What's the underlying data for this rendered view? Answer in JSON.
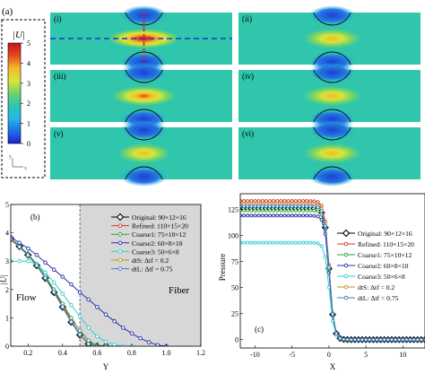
{
  "panel_a": {
    "label": "(a)",
    "colorbar": {
      "title": "|U|",
      "tick_labels": [
        "0",
        "1",
        "2",
        "3",
        "4",
        "5"
      ],
      "min": 0,
      "max": 5,
      "colors": [
        "#1f1fcf",
        "#1f6fe6",
        "#27b7e8",
        "#2ec5b0",
        "#6fd36b",
        "#d8e53a",
        "#f2b92c",
        "#e8441d",
        "#c4161c"
      ]
    },
    "axes_glyph": {
      "x": "x",
      "y": "y"
    },
    "subplots": [
      {
        "label": "(i)",
        "peak": 5.0,
        "dashed_guides": true
      },
      {
        "label": "(ii)",
        "peak": 4.3,
        "dashed_guides": false
      },
      {
        "label": "(iii)",
        "peak": 4.6,
        "dashed_guides": false
      },
      {
        "label": "(iv)",
        "peak": 4.3,
        "dashed_guides": false
      },
      {
        "label": "(v)",
        "peak": 4.1,
        "dashed_guides": false
      },
      {
        "label": "(vi)",
        "peak": 4.3,
        "dashed_guides": false
      }
    ],
    "guide_colors": {
      "horizontal": "#2233cc",
      "vertical": "#dd2222"
    }
  },
  "chart_data": [
    {
      "type": "line",
      "panel": "(b)",
      "xlabel": "Y",
      "ylabel": "|U|",
      "xlim": [
        0.1,
        1.2
      ],
      "ylim": [
        0,
        5
      ],
      "xticks": [
        "0.2",
        "0.4",
        "0.6",
        "0.8",
        "1.0",
        "1.2"
      ],
      "yticks": [
        "0",
        "1",
        "2",
        "3",
        "4",
        "5"
      ],
      "region_labels": [
        "Flow",
        "Fiber"
      ],
      "fiber_region_start": 0.5,
      "legend_position": "top-right",
      "series": [
        {
          "name": "Original: 90×12×16",
          "color": "#000000",
          "marker": "diamond",
          "x": [
            0.1,
            0.15,
            0.2,
            0.25,
            0.3,
            0.35,
            0.4,
            0.45,
            0.5,
            0.55,
            0.6,
            0.65
          ],
          "y": [
            3.8,
            3.52,
            3.22,
            2.85,
            2.4,
            1.9,
            1.38,
            0.85,
            0.4,
            0.08,
            0.0,
            0.0
          ]
        },
        {
          "name": "Refined: 110×15×20",
          "color": "#d9302a",
          "marker": "circle",
          "x": [
            0.1,
            0.15,
            0.2,
            0.25,
            0.3,
            0.35,
            0.4,
            0.45,
            0.5,
            0.55,
            0.6,
            0.65
          ],
          "y": [
            3.75,
            3.5,
            3.2,
            2.85,
            2.42,
            1.95,
            1.45,
            0.92,
            0.42,
            0.1,
            0.0,
            0.0
          ]
        },
        {
          "name": "Coarse1: 75×10×12",
          "color": "#2e9f3a",
          "marker": "circle",
          "x": [
            0.1,
            0.15,
            0.2,
            0.25,
            0.3,
            0.35,
            0.4,
            0.45,
            0.5,
            0.55,
            0.6,
            0.65,
            0.7
          ],
          "y": [
            3.8,
            3.55,
            3.25,
            2.9,
            2.48,
            2.0,
            1.5,
            1.0,
            0.55,
            0.2,
            0.03,
            0.0,
            0.0
          ]
        },
        {
          "name": "Coarse2: 60×8×10",
          "color": "#2233aa",
          "marker": "circle",
          "x": [
            0.1,
            0.15,
            0.2,
            0.25,
            0.3,
            0.35,
            0.4,
            0.45,
            0.5,
            0.55,
            0.6,
            0.65,
            0.7,
            0.75,
            0.8,
            0.85,
            0.9,
            0.95,
            1.0
          ],
          "y": [
            3.85,
            3.65,
            3.45,
            3.22,
            2.95,
            2.7,
            2.45,
            2.18,
            1.9,
            1.65,
            1.38,
            1.12,
            0.88,
            0.65,
            0.45,
            0.28,
            0.14,
            0.04,
            0.0
          ]
        },
        {
          "name": "Coarse3: 50×6×8",
          "color": "#2fcfd6",
          "marker": "circle",
          "x": [
            0.1,
            0.15,
            0.2,
            0.25,
            0.3,
            0.35,
            0.4,
            0.45,
            0.5,
            0.55,
            0.6,
            0.65,
            0.7,
            0.75,
            0.8
          ],
          "y": [
            3.0,
            3.0,
            3.0,
            2.9,
            2.6,
            2.25,
            1.85,
            1.45,
            1.05,
            0.65,
            0.35,
            0.15,
            0.05,
            0.0,
            0.0
          ]
        },
        {
          "name": "dtS: Δtf = 0.2",
          "color": "#b8961e",
          "marker": "circle",
          "x": [
            0.1,
            0.15,
            0.2,
            0.25,
            0.3,
            0.35,
            0.4,
            0.45,
            0.5,
            0.55,
            0.6,
            0.65
          ],
          "y": [
            3.78,
            3.5,
            3.2,
            2.84,
            2.4,
            1.91,
            1.4,
            0.87,
            0.4,
            0.08,
            0.0,
            0.0
          ]
        },
        {
          "name": "dtL: Δtf = 0.75",
          "color": "#3a7fc9",
          "marker": "circle",
          "x": [
            0.1,
            0.15,
            0.2,
            0.25,
            0.3,
            0.35,
            0.4,
            0.45,
            0.5,
            0.55,
            0.6,
            0.65
          ],
          "y": [
            3.79,
            3.51,
            3.21,
            2.85,
            2.41,
            1.91,
            1.39,
            0.86,
            0.41,
            0.08,
            0.0,
            0.0
          ]
        }
      ]
    },
    {
      "type": "line",
      "panel": "(c)",
      "xlabel": "X",
      "ylabel": "Pressure",
      "xlim": [
        -12,
        13
      ],
      "ylim": [
        -8,
        140
      ],
      "xticks": [
        "-10",
        "-5",
        "0",
        "5",
        "10"
      ],
      "yticks": [
        "0",
        "25",
        "50",
        "75",
        "100",
        "125"
      ],
      "legend_position": "top-right",
      "series": [
        {
          "name": "Original: 90×12×16",
          "color": "#000000",
          "marker": "diamond",
          "level": 126
        },
        {
          "name": "Refined: 110×15×20",
          "color": "#d9302a",
          "marker": "circle",
          "level": 133
        },
        {
          "name": "Coarse1: 75×10×12",
          "color": "#2e9f3a",
          "marker": "circle",
          "level": 124
        },
        {
          "name": "Coarse2: 60×8×10",
          "color": "#2233aa",
          "marker": "circle",
          "level": 119
        },
        {
          "name": "Coarse3: 50×6×8",
          "color": "#2fcfd6",
          "marker": "circle",
          "level": 93
        },
        {
          "name": "dtS: Δtf = 0.2",
          "color": "#b8961e",
          "marker": "circle",
          "level": 130
        },
        {
          "name": "dtL: Δtf = 0.75",
          "color": "#3a7fc9",
          "marker": "circle",
          "level": 128
        }
      ]
    }
  ]
}
